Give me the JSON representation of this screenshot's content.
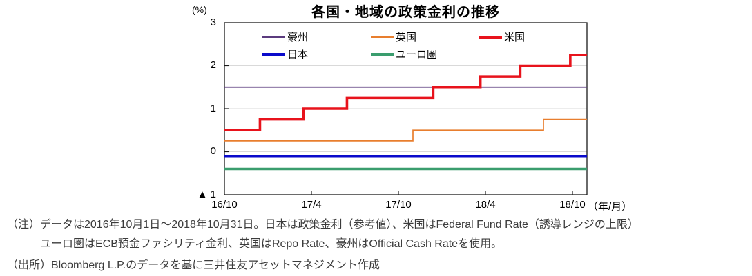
{
  "chart": {
    "title": "各国・地域の政策金利の推移",
    "y_axis_unit": "(%)",
    "y_ticks": [
      "3",
      "2",
      "1",
      "0",
      "▲ 1"
    ],
    "x_ticks": [
      "16/10",
      "17/4",
      "17/10",
      "18/4",
      "18/10"
    ],
    "x_axis_suffix": "（年/月）"
  },
  "chart_data": {
    "type": "line",
    "subtype": "step",
    "title": "各国・地域の政策金利の推移",
    "ylabel": "(%)",
    "ylim": [
      -1,
      3
    ],
    "y_tick_values": [
      3,
      2,
      1,
      0,
      -1
    ],
    "x_range_labels": [
      "16/10",
      "17/4",
      "17/10",
      "18/4",
      "18/10"
    ],
    "x_tick_months": [
      0,
      6,
      12,
      18,
      24
    ],
    "x_total_months": 25,
    "grid": true,
    "legend_position": "top-inside",
    "axis_color": "#1a1a1a",
    "grid_color": "#d9d9d9",
    "series": [
      {
        "name": "豪州",
        "color": "#5b3b7e",
        "thick": false,
        "steps": [
          {
            "date": "2016/10",
            "t": 0,
            "rate": 1.5
          }
        ]
      },
      {
        "name": "英国",
        "color": "#e87e2e",
        "thick": false,
        "steps": [
          {
            "date": "2016/10",
            "t": 0,
            "rate": 0.25
          },
          {
            "date": "2017/11",
            "t": 13.0,
            "rate": 0.5
          },
          {
            "date": "2018/8",
            "t": 22.0,
            "rate": 0.75
          }
        ]
      },
      {
        "name": "米国",
        "color": "#e8131c",
        "thick": true,
        "steps": [
          {
            "date": "2016/10",
            "t": 0,
            "rate": 0.5
          },
          {
            "date": "2016/12",
            "t": 2.45,
            "rate": 0.75
          },
          {
            "date": "2017/3",
            "t": 5.45,
            "rate": 1.0
          },
          {
            "date": "2017/6",
            "t": 8.45,
            "rate": 1.25
          },
          {
            "date": "2017/12",
            "t": 14.4,
            "rate": 1.5
          },
          {
            "date": "2018/3",
            "t": 17.65,
            "rate": 1.75
          },
          {
            "date": "2018/6",
            "t": 20.4,
            "rate": 2.0
          },
          {
            "date": "2018/9",
            "t": 23.85,
            "rate": 2.25
          }
        ]
      },
      {
        "name": "日本",
        "color": "#0a0acb",
        "thick": true,
        "steps": [
          {
            "date": "2016/10",
            "t": 0,
            "rate": -0.1
          }
        ]
      },
      {
        "name": "ユーロ圏",
        "color": "#3a9d6e",
        "thick": true,
        "steps": [
          {
            "date": "2016/10",
            "t": 0,
            "rate": -0.4
          }
        ]
      }
    ]
  },
  "notes": {
    "line1": "（注）データは2016年10月1日～2018年10月31日。日本は政策金利（参考値）、米国はFederal Fund Rate（誘導レンジの上限）",
    "line2": "ユーロ圏はECB預金ファシリティ金利、英国はRepo Rate、豪州はOfficial Cash Rateを使用。",
    "source": "（出所）Bloomberg L.P.のデータを基に三井住友アセットマネジメント作成"
  }
}
